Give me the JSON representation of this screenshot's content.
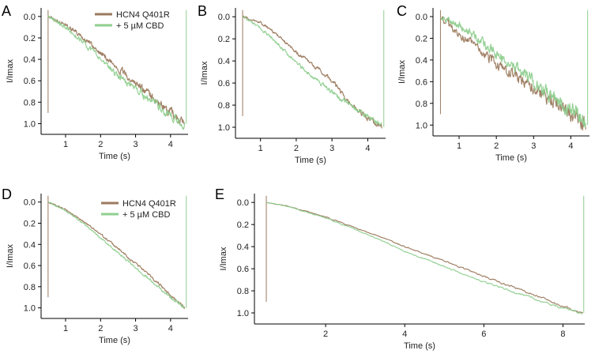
{
  "colors": {
    "control": "#9c7a5e",
    "cbd": "#8fcf8f"
  },
  "chart_data": [
    {
      "panel": "A",
      "type": "line",
      "xlabel": "Time (s)",
      "ylabel": "I/Imax",
      "xlim": [
        0.3,
        4.5
      ],
      "ylim": [
        -0.08,
        1.1
      ],
      "y_inverted": true,
      "xticks": [
        "1",
        "2",
        "3",
        "4"
      ],
      "yticks": [
        "0.0",
        "0.2",
        "0.4",
        "0.6",
        "0.8",
        "1.0"
      ],
      "noise": 0.025,
      "legend": [
        "HCN4 Q401R",
        "+ 5 µM CBD"
      ],
      "series": [
        {
          "name": "HCN4 Q401R",
          "color": "#9c7a5e",
          "x": [
            0.5,
            1.0,
            1.5,
            2.0,
            2.5,
            3.0,
            3.5,
            4.0,
            4.4
          ],
          "y": [
            0.0,
            0.08,
            0.2,
            0.34,
            0.48,
            0.62,
            0.76,
            0.9,
            1.0
          ]
        },
        {
          "name": "+ 5 µM CBD",
          "color": "#8fcf8f",
          "x": [
            0.5,
            1.0,
            1.5,
            2.0,
            2.5,
            3.0,
            3.5,
            4.0,
            4.4
          ],
          "y": [
            0.0,
            0.1,
            0.24,
            0.4,
            0.55,
            0.68,
            0.8,
            0.92,
            1.0
          ]
        }
      ]
    },
    {
      "panel": "B",
      "type": "line",
      "xlabel": "Time (s)",
      "ylabel": "I/Imax",
      "xlim": [
        0.3,
        4.5
      ],
      "ylim": [
        -0.08,
        1.1
      ],
      "y_inverted": true,
      "xticks": [
        "1",
        "2",
        "3",
        "4"
      ],
      "yticks": [
        "0.0",
        "0.2",
        "0.4",
        "0.6",
        "0.8",
        "1.0"
      ],
      "noise": 0.015,
      "series": [
        {
          "name": "HCN4 Q401R",
          "color": "#9c7a5e",
          "x": [
            0.5,
            1.0,
            1.5,
            2.0,
            2.5,
            3.0,
            3.5,
            4.0,
            4.4
          ],
          "y": [
            0.0,
            0.05,
            0.17,
            0.32,
            0.44,
            0.58,
            0.78,
            0.92,
            1.0
          ]
        },
        {
          "name": "+ 5 µM CBD",
          "color": "#8fcf8f",
          "x": [
            0.5,
            1.0,
            1.5,
            2.0,
            2.5,
            3.0,
            3.5,
            4.0,
            4.4
          ],
          "y": [
            0.0,
            0.1,
            0.25,
            0.42,
            0.56,
            0.68,
            0.8,
            0.9,
            0.98
          ]
        }
      ]
    },
    {
      "panel": "C",
      "type": "line",
      "xlabel": "Time (s)",
      "ylabel": "I/Imax",
      "xlim": [
        0.3,
        4.5
      ],
      "ylim": [
        -0.08,
        1.1
      ],
      "y_inverted": true,
      "xticks": [
        "1",
        "2",
        "3",
        "4"
      ],
      "yticks": [
        "0.0",
        "0.2",
        "0.4",
        "0.6",
        "0.8",
        "1.0"
      ],
      "noise": 0.045,
      "series": [
        {
          "name": "HCN4 Q401R",
          "color": "#9c7a5e",
          "x": [
            0.5,
            1.0,
            1.5,
            2.0,
            2.5,
            3.0,
            3.5,
            4.0,
            4.4
          ],
          "y": [
            0.0,
            0.15,
            0.3,
            0.43,
            0.55,
            0.66,
            0.78,
            0.9,
            1.0
          ]
        },
        {
          "name": "+ 5 µM CBD",
          "color": "#8fcf8f",
          "x": [
            0.5,
            1.0,
            1.5,
            2.0,
            2.5,
            3.0,
            3.5,
            4.0,
            4.4
          ],
          "y": [
            0.0,
            0.08,
            0.2,
            0.34,
            0.46,
            0.6,
            0.74,
            0.86,
            0.98
          ]
        }
      ]
    },
    {
      "panel": "D",
      "type": "line",
      "xlabel": "Time (s)",
      "ylabel": "I/Imax",
      "xlim": [
        0.3,
        4.5
      ],
      "ylim": [
        -0.08,
        1.1
      ],
      "y_inverted": true,
      "xticks": [
        "1",
        "2",
        "3",
        "4"
      ],
      "yticks": [
        "0.0",
        "0.2",
        "0.4",
        "0.6",
        "0.8",
        "1.0"
      ],
      "noise": 0.008,
      "legend": [
        "HCN4 Q401R",
        "+ 5 µM CBD"
      ],
      "series": [
        {
          "name": "HCN4 Q401R",
          "color": "#9c7a5e",
          "x": [
            0.5,
            1.0,
            1.5,
            2.0,
            2.5,
            3.0,
            3.5,
            4.0,
            4.4
          ],
          "y": [
            0.0,
            0.07,
            0.18,
            0.3,
            0.44,
            0.58,
            0.72,
            0.88,
            1.0
          ]
        },
        {
          "name": "+ 5 µM CBD",
          "color": "#8fcf8f",
          "x": [
            0.5,
            1.0,
            1.5,
            2.0,
            2.5,
            3.0,
            3.5,
            4.0,
            4.4
          ],
          "y": [
            0.0,
            0.08,
            0.2,
            0.34,
            0.48,
            0.62,
            0.76,
            0.9,
            1.0
          ]
        }
      ]
    },
    {
      "panel": "E",
      "type": "line",
      "xlabel": "Time (s)",
      "ylabel": "I/Imax",
      "xlim": [
        0.2,
        8.55
      ],
      "ylim": [
        -0.08,
        1.1
      ],
      "y_inverted": true,
      "xticks": [
        "2",
        "4",
        "6",
        "8"
      ],
      "yticks": [
        "0.0",
        "0.2",
        "0.4",
        "0.6",
        "0.8",
        "1.0"
      ],
      "noise": 0.006,
      "series": [
        {
          "name": "HCN4 Q401R",
          "color": "#9c7a5e",
          "x": [
            0.5,
            1.0,
            2.0,
            3.0,
            4.0,
            5.0,
            6.0,
            7.0,
            8.0,
            8.5
          ],
          "y": [
            0.0,
            0.03,
            0.13,
            0.26,
            0.4,
            0.53,
            0.67,
            0.8,
            0.94,
            1.0
          ]
        },
        {
          "name": "+ 5 µM CBD",
          "color": "#8fcf8f",
          "x": [
            0.5,
            1.0,
            2.0,
            3.0,
            4.0,
            5.0,
            6.0,
            7.0,
            8.0,
            8.5
          ],
          "y": [
            0.0,
            0.03,
            0.14,
            0.28,
            0.44,
            0.58,
            0.72,
            0.84,
            0.96,
            1.0
          ]
        }
      ]
    }
  ]
}
